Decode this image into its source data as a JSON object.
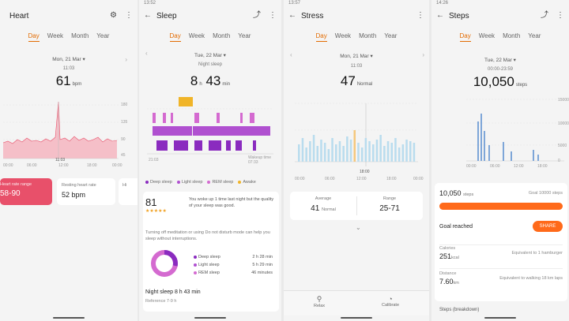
{
  "screens": {
    "heart": {
      "status_time": "",
      "title": "Heart",
      "tabs": [
        "Day",
        "Week",
        "Month",
        "Year"
      ],
      "active_tab": "Day",
      "date": "Mon, 21 Mar",
      "time": "11:03",
      "value": "61",
      "unit": "bpm",
      "x_ticks": [
        "00:00",
        "06:00",
        "12:00",
        "18:00",
        "00:00"
      ],
      "marker": "11:03",
      "y_ticks": [
        "180",
        "135",
        "90",
        "45"
      ],
      "card_range_label": "Heart rate range",
      "card_range_value": "58-90",
      "card_resting_label": "Resting heart rate",
      "card_resting_value": "52 bpm",
      "card_third_label": "Hi"
    },
    "sleep": {
      "status_time": "13:52",
      "title": "Sleep",
      "tabs": [
        "Day",
        "Week",
        "Month",
        "Year"
      ],
      "active_tab": "Day",
      "date": "Tue, 22 Mar",
      "sub": "Night sleep",
      "value_h": "8",
      "value_m": "43",
      "unit_h": "h",
      "unit_m": "min",
      "start": "21:03",
      "end_label": "Wakeup time 07:33",
      "legend": [
        "Deep sleep",
        "Light sleep",
        "REM sleep",
        "Awake"
      ],
      "score": "81",
      "score_stars": "★★★★★",
      "score_note": "You woke up 1 time last night but the quality of your sleep was good.",
      "advice": "Turning off meditation or using Do not disturb mode can help you sleep without interruptions.",
      "stats": [
        {
          "label": "Deep sleep",
          "value": "2 h 28 min"
        },
        {
          "label": "Light sleep",
          "value": "5 h 29 min"
        },
        {
          "label": "REM sleep",
          "value": "46 minutes"
        }
      ],
      "night_sleep": "Night sleep 8 h 43 min",
      "reference": "Reference 7-9 h"
    },
    "stress": {
      "status_time": "13:57",
      "title": "Stress",
      "tabs": [
        "Day",
        "Week",
        "Month",
        "Year"
      ],
      "active_tab": "Day",
      "date": "Mon, 21 Mar",
      "time": "11:03",
      "value": "47",
      "unit": "Normal",
      "x_ticks": [
        "00:00",
        "06:00",
        "12:00",
        "18:00",
        "00:00"
      ],
      "marker": "18:00",
      "avg_label": "Average",
      "avg_value": "41",
      "avg_unit": "Normal",
      "range_label": "Range",
      "range_value": "25-71",
      "bottom": [
        "Relax",
        "Calibrate"
      ]
    },
    "steps": {
      "status_time": "14:26",
      "title": "Steps",
      "tabs": [
        "Day",
        "Week",
        "Month",
        "Year"
      ],
      "active_tab": "Day",
      "date": "Tue, 22 Mar",
      "time": "00:00-23:59",
      "value": "10,050",
      "unit": "steps",
      "x_ticks": [
        "00:00",
        "06:00",
        "12:00",
        "18:00"
      ],
      "y_ticks": [
        "15000",
        "10000",
        "5000",
        "0"
      ],
      "progress_value": "10,050",
      "progress_unit": "steps",
      "goal_text": "Goal 10000 steps",
      "goal_reached": "Goal reached",
      "share": "SHARE",
      "calories_label": "Calories",
      "calories_value": "251",
      "calories_unit": "kcal",
      "calories_note": "Equivalent to 1 hamburger",
      "distance_label": "Distance",
      "distance_value": "7.60",
      "distance_unit": "km",
      "distance_note": "Equivalent to walking 18 km laps",
      "footer": "Steps (breakdown)",
      "progress_fraction": 1.0
    }
  },
  "colors": {
    "accent": "#e36b00",
    "heart_fill": "#f4b5c0",
    "heart_card": "#e8506a",
    "sleep_purple": "#8a2bbf",
    "sleep_pink": "#d46ad0",
    "sleep_awake": "#f0b428",
    "stress_bar": "#b9dcee",
    "steps_bar": "#7ea6d8",
    "progress": "#ff6a1a"
  },
  "icons": [
    "back-arrow-icon",
    "settings-icon",
    "more-icon",
    "share-icon"
  ]
}
